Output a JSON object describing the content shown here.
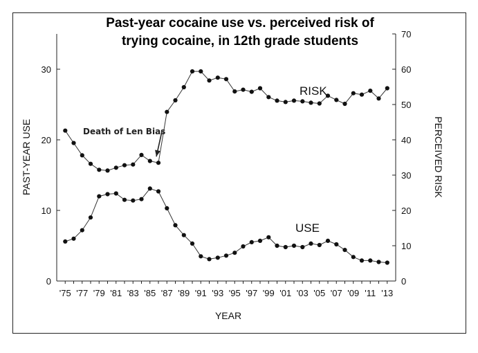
{
  "chart_data": {
    "type": "line",
    "title_line1": "Past-year cocaine use vs. perceived risk of",
    "title_line2": "trying cocaine, in 12th grade students",
    "xlabel": "YEAR",
    "ylabel_left": "PAST-YEAR USE",
    "ylabel_right": "PERCEIVED RISK",
    "x": [
      1975,
      1976,
      1977,
      1978,
      1979,
      1980,
      1981,
      1982,
      1983,
      1984,
      1985,
      1986,
      1987,
      1988,
      1989,
      1990,
      1991,
      1992,
      1993,
      1994,
      1995,
      1996,
      1997,
      1998,
      1999,
      2000,
      2001,
      2002,
      2003,
      2004,
      2005,
      2006,
      2007,
      2008,
      2009,
      2010,
      2011,
      2012,
      2013
    ],
    "x_tick_labels": [
      "'75",
      "'77",
      "'79",
      "'81",
      "'83",
      "'85",
      "'87",
      "'89",
      "'91",
      "'93",
      "'95",
      "'97",
      "'99",
      "'01",
      "'03",
      "'05",
      "'07",
      "'09",
      "'11",
      "'13"
    ],
    "xlim": [
      1974,
      2014
    ],
    "left_axis": {
      "ylim": [
        0,
        35
      ],
      "ticks": [
        0,
        10,
        20,
        30
      ]
    },
    "right_axis": {
      "ylim": [
        0,
        70
      ],
      "ticks": [
        0,
        10,
        20,
        30,
        40,
        50,
        60,
        70
      ]
    },
    "series": [
      {
        "name": "RISK",
        "axis": "right",
        "values": [
          42.6,
          39.1,
          35.6,
          33.2,
          31.5,
          31.3,
          32.1,
          32.8,
          33.0,
          35.7,
          34.0,
          33.5,
          47.9,
          51.2,
          54.9,
          59.4,
          59.4,
          56.8,
          57.6,
          57.2,
          53.7,
          54.2,
          53.6,
          54.6,
          52.1,
          51.1,
          50.7,
          51.1,
          50.9,
          50.5,
          50.3,
          52.5,
          51.3,
          50.2,
          53.2,
          52.8,
          53.9,
          51.7,
          54.6
        ]
      },
      {
        "name": "USE",
        "axis": "left",
        "values": [
          5.6,
          6.0,
          7.2,
          9.0,
          12.0,
          12.3,
          12.4,
          11.5,
          11.4,
          11.6,
          13.1,
          12.7,
          10.3,
          7.9,
          6.5,
          5.3,
          3.5,
          3.1,
          3.3,
          3.6,
          4.0,
          4.9,
          5.5,
          5.7,
          6.2,
          5.0,
          4.8,
          5.0,
          4.8,
          5.3,
          5.1,
          5.7,
          5.2,
          4.4,
          3.4,
          2.9,
          2.9,
          2.7,
          2.6
        ]
      }
    ],
    "annotation": {
      "text": "Death of Len Bias",
      "x": 1986,
      "series": "RISK"
    },
    "grid": false,
    "legend": "none"
  }
}
